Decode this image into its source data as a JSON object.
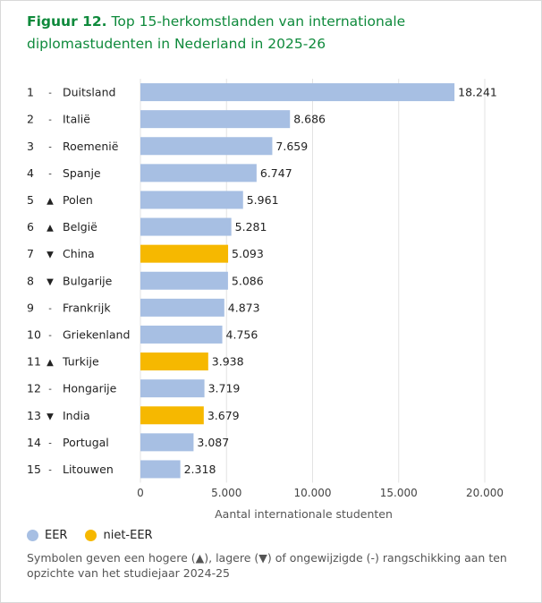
{
  "title": {
    "lead": "Figuur 12.",
    "text": "Top 15-herkomstlanden van internationale diplomastudenten in Nederland in 2025-26"
  },
  "colors": {
    "eer": "#a7bfe3",
    "niet_eer": "#f6b800",
    "title": "#0f8a3c"
  },
  "legend": [
    {
      "label": "EER",
      "color": "#a7bfe3"
    },
    {
      "label": "niet-EER",
      "color": "#f6b800"
    }
  ],
  "note": "Symbolen geven een hogere (▲), lagere (▼) of ongewijzigde (-) rangschikking aan ten opzichte van het studiejaar 2024-25",
  "chart_data": {
    "type": "bar",
    "orientation": "horizontal",
    "xlabel": "Aantal internationale studenten",
    "ylabel": "",
    "xlim": [
      0,
      20000
    ],
    "xticks": [
      0,
      5000,
      10000,
      15000,
      20000
    ],
    "xtick_labels": [
      "0",
      "5.000",
      "10.000",
      "15.000",
      "20.000"
    ],
    "grid": "vertical",
    "legend_position": "bottom-left",
    "rows": [
      {
        "rank": "1",
        "trend": "-",
        "country": "Duitsland",
        "value": 18241,
        "label": "18.241",
        "group": "eer"
      },
      {
        "rank": "2",
        "trend": "-",
        "country": "Italië",
        "value": 8686,
        "label": "8.686",
        "group": "eer"
      },
      {
        "rank": "3",
        "trend": "-",
        "country": "Roemenië",
        "value": 7659,
        "label": "7.659",
        "group": "eer"
      },
      {
        "rank": "4",
        "trend": "-",
        "country": "Spanje",
        "value": 6747,
        "label": "6.747",
        "group": "eer"
      },
      {
        "rank": "5",
        "trend": "▲",
        "country": "Polen",
        "value": 5961,
        "label": "5.961",
        "group": "eer"
      },
      {
        "rank": "6",
        "trend": "▲",
        "country": "België",
        "value": 5281,
        "label": "5.281",
        "group": "eer"
      },
      {
        "rank": "7",
        "trend": "▼",
        "country": "China",
        "value": 5093,
        "label": "5.093",
        "group": "niet_eer"
      },
      {
        "rank": "8",
        "trend": "▼",
        "country": "Bulgarije",
        "value": 5086,
        "label": "5.086",
        "group": "eer"
      },
      {
        "rank": "9",
        "trend": "-",
        "country": "Frankrijk",
        "value": 4873,
        "label": "4.873",
        "group": "eer"
      },
      {
        "rank": "10",
        "trend": "-",
        "country": "Griekenland",
        "value": 4756,
        "label": "4.756",
        "group": "eer"
      },
      {
        "rank": "11",
        "trend": "▲",
        "country": "Turkije",
        "value": 3938,
        "label": "3.938",
        "group": "niet_eer"
      },
      {
        "rank": "12",
        "trend": "-",
        "country": "Hongarije",
        "value": 3719,
        "label": "3.719",
        "group": "eer"
      },
      {
        "rank": "13",
        "trend": "▼",
        "country": "India",
        "value": 3679,
        "label": "3.679",
        "group": "niet_eer"
      },
      {
        "rank": "14",
        "trend": "-",
        "country": "Portugal",
        "value": 3087,
        "label": "3.087",
        "group": "eer"
      },
      {
        "rank": "15",
        "trend": "-",
        "country": "Litouwen",
        "value": 2318,
        "label": "2.318",
        "group": "eer"
      }
    ]
  }
}
